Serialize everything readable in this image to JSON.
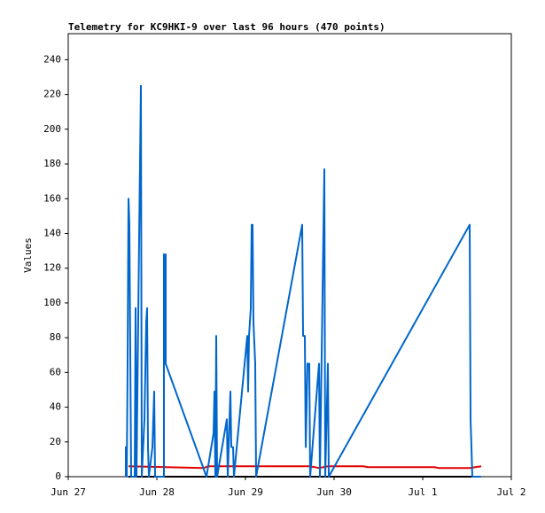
{
  "chart_data": {
    "type": "line",
    "title": "Telemetry for KC9HKI-9 over last 96 hours (470 points)",
    "y_label": "Values",
    "xlim": [
      0,
      5
    ],
    "xticks": [
      {
        "value": 0,
        "label": "Jun 27"
      },
      {
        "value": 1,
        "label": "Jun 28"
      },
      {
        "value": 2,
        "label": "Jun 29"
      },
      {
        "value": 3,
        "label": "Jun 30"
      },
      {
        "value": 4,
        "label": "Jul 1"
      },
      {
        "value": 5,
        "label": "Jul 2"
      }
    ],
    "ylim": [
      0,
      255
    ],
    "yticks": [
      0,
      20,
      40,
      60,
      80,
      100,
      120,
      140,
      160,
      180,
      200,
      220,
      240
    ],
    "series": [
      {
        "color": "#000000",
        "x": [
          0.68,
          4.66
        ],
        "values": [
          0,
          0
        ]
      },
      {
        "color": "#e00000",
        "x": [
          0.68,
          1.53,
          1.58,
          2.13,
          2.73,
          2.83,
          2.93,
          3.33,
          3.38,
          4.13,
          4.18,
          4.53,
          4.66
        ],
        "values": [
          6,
          5,
          6,
          6,
          6,
          5,
          6,
          6,
          5.5,
          5.5,
          5,
          5,
          6
        ]
      },
      {
        "color": "#0066cc",
        "x": [
          0.65,
          0.65,
          0.66,
          0.67,
          0.68,
          0.69,
          0.7,
          0.71,
          0.75,
          0.76,
          0.77,
          0.8,
          0.82,
          0.83,
          0.86,
          0.88,
          0.89,
          0.9,
          0.91,
          0.95,
          0.97,
          0.98,
          1.08,
          1.08,
          1.09,
          1.1,
          1.1,
          1.56,
          1.64,
          1.65,
          1.66,
          1.67,
          1.68,
          1.79,
          1.8,
          1.83,
          1.84,
          1.86,
          1.87,
          2.02,
          2.03,
          2.04,
          2.06,
          2.07,
          2.08,
          2.09,
          2.11,
          2.12,
          2.64,
          2.65,
          2.67,
          2.68,
          2.7,
          2.72,
          2.73,
          2.83,
          2.84,
          2.89,
          2.9,
          2.93,
          2.94,
          4.53,
          4.54,
          4.55,
          4.56,
          4.66
        ],
        "values": [
          0,
          17,
          0,
          65,
          160,
          145,
          72,
          0,
          0,
          97,
          0,
          137,
          225,
          0,
          33,
          89,
          97,
          17,
          0,
          17,
          49,
          0,
          0,
          128,
          65,
          128,
          65,
          0,
          25,
          49,
          0,
          81,
          0,
          33,
          0,
          49,
          17,
          17,
          0,
          81,
          49,
          81,
          97,
          145,
          145,
          89,
          65,
          0,
          145,
          81,
          81,
          17,
          65,
          65,
          0,
          65,
          0,
          177,
          0,
          65,
          0,
          145,
          33,
          17,
          0,
          0
        ]
      }
    ]
  }
}
